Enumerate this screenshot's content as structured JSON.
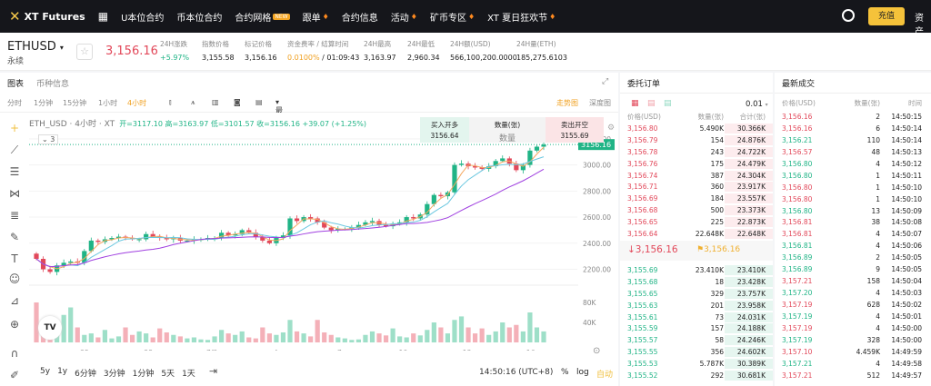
{
  "nav": {
    "brand": "XT Futures",
    "items": [
      {
        "label": "U本位合约"
      },
      {
        "label": "币本位合约"
      },
      {
        "label": "合约网格",
        "badge": "NEW"
      },
      {
        "label": "跟单",
        "fire": true
      },
      {
        "label": "合约信息"
      },
      {
        "label": "活动",
        "fire": true
      },
      {
        "label": "矿币专区",
        "fire": true
      },
      {
        "label": "XT 夏日狂欢节",
        "fire": true
      }
    ],
    "recharge": "充值",
    "assets": "资产"
  },
  "ticker": {
    "symbol": "ETHUSD",
    "type": "永续",
    "last": "3,156.16",
    "stats": [
      {
        "label": "24H涨跌",
        "value": "+5.97%"
      },
      {
        "label": "指数价格",
        "value": "3,155.58"
      },
      {
        "label": "标记价格",
        "value": "3,156.16"
      },
      {
        "label": "资金费率 / 结算时间",
        "value": "0.0100%",
        "value2": " / 01:09:43"
      },
      {
        "label": "24H最高",
        "value": "3,163.97"
      },
      {
        "label": "24H最低",
        "value": "2,960.34"
      },
      {
        "label": "24H额(USD)",
        "value": "566,100,200.0000"
      },
      {
        "label": "24H量(ETH)",
        "value": "185,275.6103"
      }
    ]
  },
  "chart_tabs": [
    "图表",
    "币种信息"
  ],
  "toolbar": {
    "intervals": [
      "分时",
      "1分钟",
      "15分钟",
      "1小时",
      "4小时"
    ],
    "price_type": "最新价格",
    "view_trend": "走势图",
    "view_depth": "深度图"
  },
  "legend": {
    "title": "ETH_USD · 4小时 · XT",
    "ohlc": "开=3117.10 高=3163.97 低=3101.57 收=3156.16 +39.07 (+1.25%)",
    "indicators": "3"
  },
  "quick_trade": {
    "buy_label": "买入开多",
    "buy_price": "3156.64",
    "qty_label": "数量(张)",
    "qty_placeholder": "数量",
    "sell_label": "卖出开空",
    "sell_price": "3155.69"
  },
  "bottom": {
    "ranges": [
      "5y",
      "1y",
      "6分钟",
      "3分钟",
      "1分钟",
      "5天",
      "1天"
    ],
    "time": "14:50:16 (UTC+8)",
    "pct": "%",
    "log": "log",
    "auto": "自动"
  },
  "chart_data": {
    "type": "candlestick",
    "y_ticks": [
      "3200.00",
      "3000.00",
      "2800.00",
      "2600.00",
      "2400.00",
      "2200.00"
    ],
    "ylim": [
      2120,
      3220
    ],
    "x_ticks": [
      "25",
      "28",
      "7月",
      "4",
      "7",
      "10",
      "13",
      "16"
    ],
    "vol_ticks": [
      "80K",
      "40K"
    ],
    "last_label": "3156.16",
    "closes": [
      2280,
      2200,
      2180,
      2230,
      2250,
      2260,
      2250,
      2340,
      2420,
      2410,
      2430,
      2440,
      2450,
      2440,
      2430,
      2430,
      2470,
      2450,
      2440,
      2430,
      2440,
      2420,
      2420,
      2430,
      2430,
      2440,
      2440,
      2480,
      2460,
      2470,
      2500,
      2480,
      2450,
      2420,
      2400,
      2440,
      2460,
      2590,
      2570,
      2600,
      2590,
      2560,
      2520,
      2500,
      2510,
      2510,
      2520,
      2540,
      2560,
      2570,
      2540,
      2530,
      2550,
      2560,
      2600,
      2590,
      2620,
      2700,
      2770,
      2760,
      2790,
      3000,
      3010,
      2990,
      2980,
      2970,
      2990,
      3030,
      3050,
      3010,
      2960,
      3000,
      3110,
      3140,
      3156.16
    ],
    "volumes_k": [
      80,
      20,
      12,
      15,
      55,
      70,
      30,
      15,
      18,
      10,
      25,
      8,
      12,
      30,
      15,
      22,
      18,
      10,
      28,
      20,
      15,
      12,
      8,
      10,
      6,
      5,
      12,
      25,
      18,
      15,
      22,
      10,
      8,
      30,
      18,
      15,
      20,
      45,
      22,
      18,
      12,
      45,
      20,
      15,
      10,
      8,
      5,
      6,
      15,
      22,
      18,
      14,
      28,
      12,
      10,
      18,
      14,
      25,
      40,
      30,
      18,
      45,
      52,
      30,
      18,
      28,
      15,
      22,
      40,
      30,
      35,
      22,
      60,
      30,
      22
    ]
  },
  "orderbook": {
    "title": "委托订单",
    "precision": "0.01",
    "headers": [
      "价格(USD)",
      "数量(张)",
      "合计(张)"
    ],
    "asks": [
      [
        "3,156.80",
        "5.490K",
        "30.366K"
      ],
      [
        "3,156.79",
        "154",
        "24.876K"
      ],
      [
        "3,156.78",
        "243",
        "24.722K"
      ],
      [
        "3,156.76",
        "175",
        "24.479K"
      ],
      [
        "3,156.74",
        "387",
        "24.304K"
      ],
      [
        "3,156.71",
        "360",
        "23.917K"
      ],
      [
        "3,156.69",
        "184",
        "23.557K"
      ],
      [
        "3,156.68",
        "500",
        "23.373K"
      ],
      [
        "3,156.65",
        "225",
        "22.873K"
      ],
      [
        "3,156.64",
        "22.648K",
        "22.648K"
      ]
    ],
    "mid_price": "↓3,156.16",
    "mark_price": "3,156.16",
    "bids": [
      [
        "3,155.69",
        "23.410K",
        "23.410K"
      ],
      [
        "3,155.68",
        "18",
        "23.428K"
      ],
      [
        "3,155.65",
        "329",
        "23.757K"
      ],
      [
        "3,155.63",
        "201",
        "23.958K"
      ],
      [
        "3,155.61",
        "73",
        "24.031K"
      ],
      [
        "3,155.59",
        "157",
        "24.188K"
      ],
      [
        "3,155.57",
        "58",
        "24.246K"
      ],
      [
        "3,155.55",
        "356",
        "24.602K"
      ],
      [
        "3,155.53",
        "5.787K",
        "30.389K"
      ],
      [
        "3,155.52",
        "292",
        "30.681K"
      ]
    ]
  },
  "trades": {
    "title": "最新成交",
    "headers": [
      "价格(USD)",
      "数量(张)",
      "时间"
    ],
    "rows": [
      [
        "3,156.16",
        "2",
        "14:50:15",
        "r"
      ],
      [
        "3,156.16",
        "6",
        "14:50:14",
        "r"
      ],
      [
        "3,156.21",
        "110",
        "14:50:14",
        "g"
      ],
      [
        "3,156.57",
        "48",
        "14:50:13",
        "r"
      ],
      [
        "3,156.80",
        "4",
        "14:50:12",
        "g"
      ],
      [
        "3,156.80",
        "1",
        "14:50:11",
        "g"
      ],
      [
        "3,156.80",
        "1",
        "14:50:10",
        "r"
      ],
      [
        "3,156.80",
        "1",
        "14:50:10",
        "r"
      ],
      [
        "3,156.80",
        "13",
        "14:50:09",
        "g"
      ],
      [
        "3,156.81",
        "38",
        "14:50:08",
        "r"
      ],
      [
        "3,156.81",
        "4",
        "14:50:07",
        "r"
      ],
      [
        "3,156.81",
        "4",
        "14:50:06",
        "g"
      ],
      [
        "3,156.89",
        "2",
        "14:50:05",
        "g"
      ],
      [
        "3,156.89",
        "9",
        "14:50:05",
        "g"
      ],
      [
        "3,157.21",
        "158",
        "14:50:04",
        "r"
      ],
      [
        "3,157.20",
        "4",
        "14:50:03",
        "g"
      ],
      [
        "3,157.19",
        "628",
        "14:50:02",
        "r"
      ],
      [
        "3,157.19",
        "4",
        "14:50:01",
        "g"
      ],
      [
        "3,157.19",
        "4",
        "14:50:00",
        "r"
      ],
      [
        "3,157.19",
        "328",
        "14:50:00",
        "g"
      ],
      [
        "3,157.10",
        "4.459K",
        "14:49:59",
        "r"
      ],
      [
        "3,157.21",
        "4",
        "14:49:58",
        "g"
      ],
      [
        "3,157.21",
        "512",
        "14:49:57",
        "r"
      ]
    ]
  },
  "colors": {
    "up": "#20b486",
    "down": "#e2485a",
    "accent": "#f5c23a"
  }
}
